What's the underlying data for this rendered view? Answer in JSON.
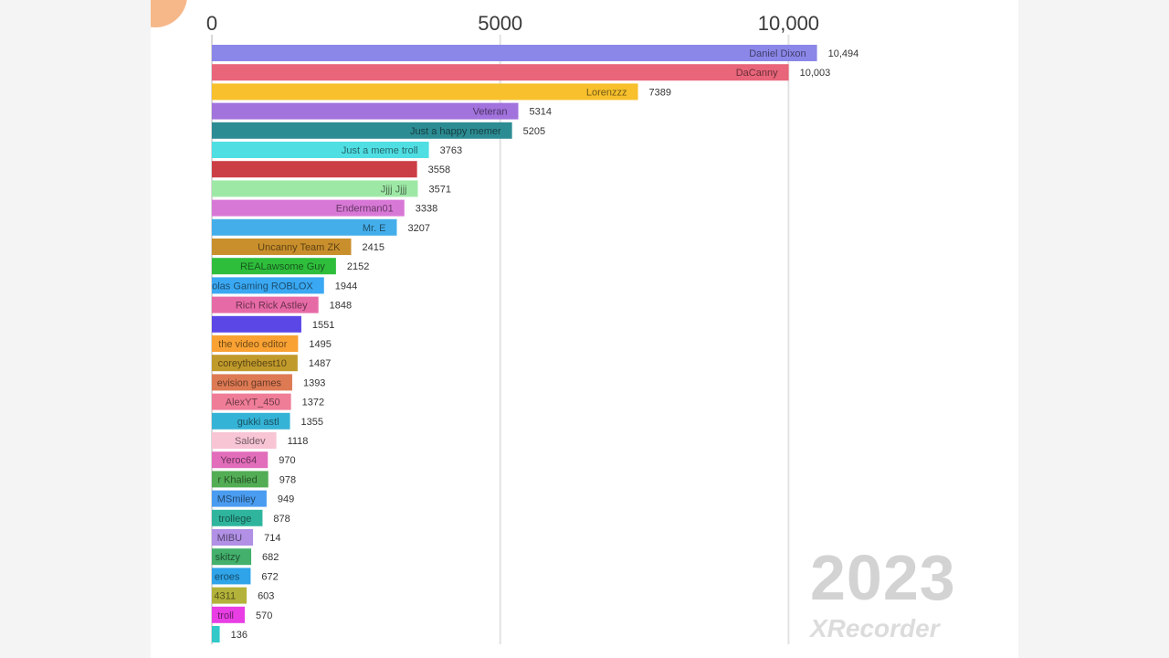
{
  "chart_data": {
    "type": "bar",
    "orientation": "horizontal",
    "xlim": [
      0,
      10500
    ],
    "ticks": [
      {
        "value": 0,
        "label": "0"
      },
      {
        "value": 5000,
        "label": "5000"
      },
      {
        "value": 10000,
        "label": "10,000"
      }
    ],
    "grid": true,
    "bars": [
      {
        "name": "Daniel Dixon",
        "value": 10494,
        "label": "10,494",
        "color": "#8b87e8"
      },
      {
        "name": "DaCanny",
        "value": 10003,
        "label": "10,003",
        "color": "#e8657a"
      },
      {
        "name": "Lorenzzz",
        "value": 7389,
        "label": "7389",
        "color": "#f7c02c"
      },
      {
        "name": "Veteran",
        "value": 5314,
        "label": "5314",
        "color": "#a272dd"
      },
      {
        "name": "Just a happy memer",
        "value": 5205,
        "label": "5205",
        "color": "#2c8c93"
      },
      {
        "name": "Just a meme troll",
        "value": 3763,
        "label": "3763",
        "color": "#4fdfe3"
      },
      {
        "name": "",
        "value": 3558,
        "label": "3558",
        "color": "#cc3e46"
      },
      {
        "name": "Jjjj Jjjj",
        "value": 3571,
        "label": "3571",
        "color": "#9ee8a6"
      },
      {
        "name": "Enderman01",
        "value": 3338,
        "label": "3338",
        "color": "#d878d6"
      },
      {
        "name": "Mr. E",
        "value": 3207,
        "label": "3207",
        "color": "#44aeea"
      },
      {
        "name": "Uncanny Team ZK",
        "value": 2415,
        "label": "2415",
        "color": "#c98f2c"
      },
      {
        "name": "REALawsome Guy",
        "value": 2152,
        "label": "2152",
        "color": "#2fbe3c"
      },
      {
        "name": "olas Gaming ROBLOX",
        "value": 1944,
        "label": "1944",
        "color": "#3aa8f2"
      },
      {
        "name": "Rich Rick Astley",
        "value": 1848,
        "label": "1848",
        "color": "#e66aa6"
      },
      {
        "name": "",
        "value": 1551,
        "label": "1551",
        "color": "#5b46e6"
      },
      {
        "name": "the video editor",
        "value": 1495,
        "label": "1495",
        "color": "#f9a233"
      },
      {
        "name": "coreythebest10",
        "value": 1487,
        "label": "1487",
        "color": "#c19a2c"
      },
      {
        "name": "evision games",
        "value": 1393,
        "label": "1393",
        "color": "#dd7a54"
      },
      {
        "name": "AlexYT_450",
        "value": 1372,
        "label": "1372",
        "color": "#f07d98"
      },
      {
        "name": "gukki astl",
        "value": 1355,
        "label": "1355",
        "color": "#35b3d6"
      },
      {
        "name": "Saldev",
        "value": 1118,
        "label": "1118",
        "color": "#f8c5d5"
      },
      {
        "name": "Yeroc64",
        "value": 970,
        "label": "970",
        "color": "#e26dbb"
      },
      {
        "name": "r Khalied",
        "value": 978,
        "label": "978",
        "color": "#52ad55"
      },
      {
        "name": "MSmiley",
        "value": 949,
        "label": "949",
        "color": "#4a9cf0"
      },
      {
        "name": "trollege",
        "value": 878,
        "label": "878",
        "color": "#2fb59e"
      },
      {
        "name": "MIBU",
        "value": 714,
        "label": "714",
        "color": "#b190e6"
      },
      {
        "name": "skitzy",
        "value": 682,
        "label": "682",
        "color": "#43b06c"
      },
      {
        "name": "eroes",
        "value": 672,
        "label": "672",
        "color": "#2fa4e8"
      },
      {
        "name": "4311",
        "value": 603,
        "label": "603",
        "color": "#b3b23a"
      },
      {
        "name": "troll",
        "value": 570,
        "label": "570",
        "color": "#e83ee4"
      },
      {
        "name": "",
        "value": 136,
        "label": "136",
        "color": "#33c9c9"
      }
    ]
  },
  "year": "2023",
  "watermark": "XRecorder"
}
